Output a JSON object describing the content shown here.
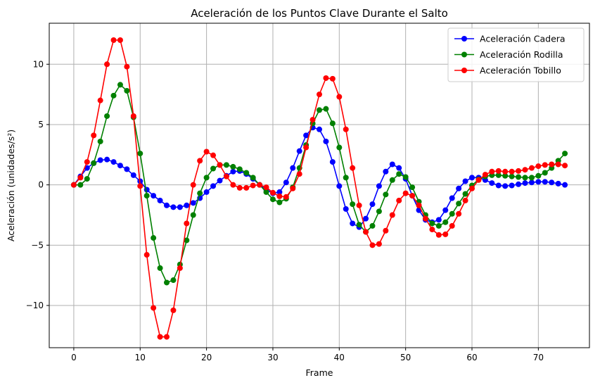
{
  "chart_data": {
    "type": "line",
    "title": "Aceleración de los Puntos Clave Durante el Salto",
    "xlabel": "Frame",
    "ylabel": "Aceleración (unidades/s²)",
    "xlim": [
      -3.7,
      77.7
    ],
    "ylim": [
      -13.5,
      13.4
    ],
    "xticks": [
      0,
      10,
      20,
      30,
      40,
      50,
      60,
      70
    ],
    "yticks": [
      -10,
      -5,
      0,
      5,
      10
    ],
    "grid": true,
    "legend_position": "top-right",
    "marker": "circle",
    "x": [
      0,
      1,
      2,
      3,
      4,
      5,
      6,
      7,
      8,
      9,
      10,
      11,
      12,
      13,
      14,
      15,
      16,
      17,
      18,
      19,
      20,
      21,
      22,
      23,
      24,
      25,
      26,
      27,
      28,
      29,
      30,
      31,
      32,
      33,
      34,
      35,
      36,
      37,
      38,
      39,
      40,
      41,
      42,
      43,
      44,
      45,
      46,
      47,
      48,
      49,
      50,
      51,
      52,
      53,
      54,
      55,
      56,
      57,
      58,
      59,
      60,
      61,
      62,
      63,
      64,
      65,
      66,
      67,
      68,
      69,
      70,
      71,
      72,
      73,
      74
    ],
    "series": [
      {
        "name": "Aceleración Cadera",
        "color": "#0000ff",
        "values": [
          0,
          0.7,
          1.4,
          1.8,
          2.05,
          2.1,
          1.9,
          1.6,
          1.3,
          0.8,
          0.3,
          -0.4,
          -0.9,
          -1.3,
          -1.7,
          -1.85,
          -1.85,
          -1.7,
          -1.5,
          -1.1,
          -0.6,
          -0.1,
          0.35,
          0.75,
          1.1,
          1.15,
          0.9,
          0.5,
          0.0,
          -0.4,
          -0.7,
          -0.6,
          0.2,
          1.4,
          2.8,
          4.1,
          4.75,
          4.6,
          3.6,
          1.9,
          -0.1,
          -2.0,
          -3.2,
          -3.5,
          -2.8,
          -1.6,
          -0.1,
          1.1,
          1.7,
          1.4,
          0.5,
          -0.9,
          -2.1,
          -2.9,
          -3.1,
          -2.9,
          -2.1,
          -1.1,
          -0.3,
          0.3,
          0.6,
          0.6,
          0.4,
          0.15,
          -0.05,
          -0.1,
          -0.05,
          0.05,
          0.15,
          0.2,
          0.25,
          0.25,
          0.2,
          0.1,
          0.0
        ]
      },
      {
        "name": "Aceleración Rodilla",
        "color": "#008000",
        "values": [
          0,
          0.0,
          0.5,
          1.8,
          3.6,
          5.7,
          7.4,
          8.3,
          7.8,
          5.6,
          2.6,
          -0.9,
          -4.4,
          -6.9,
          -8.1,
          -7.9,
          -6.6,
          -4.6,
          -2.5,
          -0.7,
          0.6,
          1.35,
          1.65,
          1.65,
          1.5,
          1.3,
          1.0,
          0.6,
          0.0,
          -0.6,
          -1.2,
          -1.45,
          -1.15,
          -0.2,
          1.4,
          3.3,
          5.1,
          6.2,
          6.3,
          5.1,
          3.1,
          0.6,
          -1.6,
          -3.3,
          -3.9,
          -3.4,
          -2.2,
          -0.8,
          0.4,
          0.9,
          0.65,
          -0.2,
          -1.4,
          -2.5,
          -3.2,
          -3.4,
          -3.1,
          -2.4,
          -1.55,
          -0.75,
          -0.05,
          0.45,
          0.7,
          0.8,
          0.8,
          0.75,
          0.7,
          0.65,
          0.6,
          0.6,
          0.75,
          1.0,
          1.4,
          2.0,
          2.6
        ]
      },
      {
        "name": "Aceleración Tobillo",
        "color": "#ff0000",
        "values": [
          0,
          0.6,
          1.9,
          4.1,
          7.0,
          10.0,
          12.0,
          12.0,
          9.8,
          5.7,
          -0.1,
          -5.8,
          -10.2,
          -12.6,
          -12.6,
          -10.4,
          -6.9,
          -3.2,
          0.0,
          2.0,
          2.75,
          2.45,
          1.65,
          0.7,
          0.0,
          -0.25,
          -0.25,
          -0.05,
          0.0,
          -0.2,
          -0.65,
          -0.95,
          -1.0,
          -0.3,
          0.9,
          3.1,
          5.4,
          7.5,
          8.85,
          8.8,
          7.3,
          4.6,
          1.4,
          -1.7,
          -3.9,
          -5.0,
          -4.9,
          -3.8,
          -2.5,
          -1.3,
          -0.7,
          -0.9,
          -1.7,
          -2.8,
          -3.7,
          -4.15,
          -4.1,
          -3.4,
          -2.4,
          -1.3,
          -0.3,
          0.4,
          0.85,
          1.1,
          1.15,
          1.1,
          1.1,
          1.15,
          1.25,
          1.4,
          1.55,
          1.65,
          1.7,
          1.7,
          1.6
        ]
      }
    ]
  }
}
